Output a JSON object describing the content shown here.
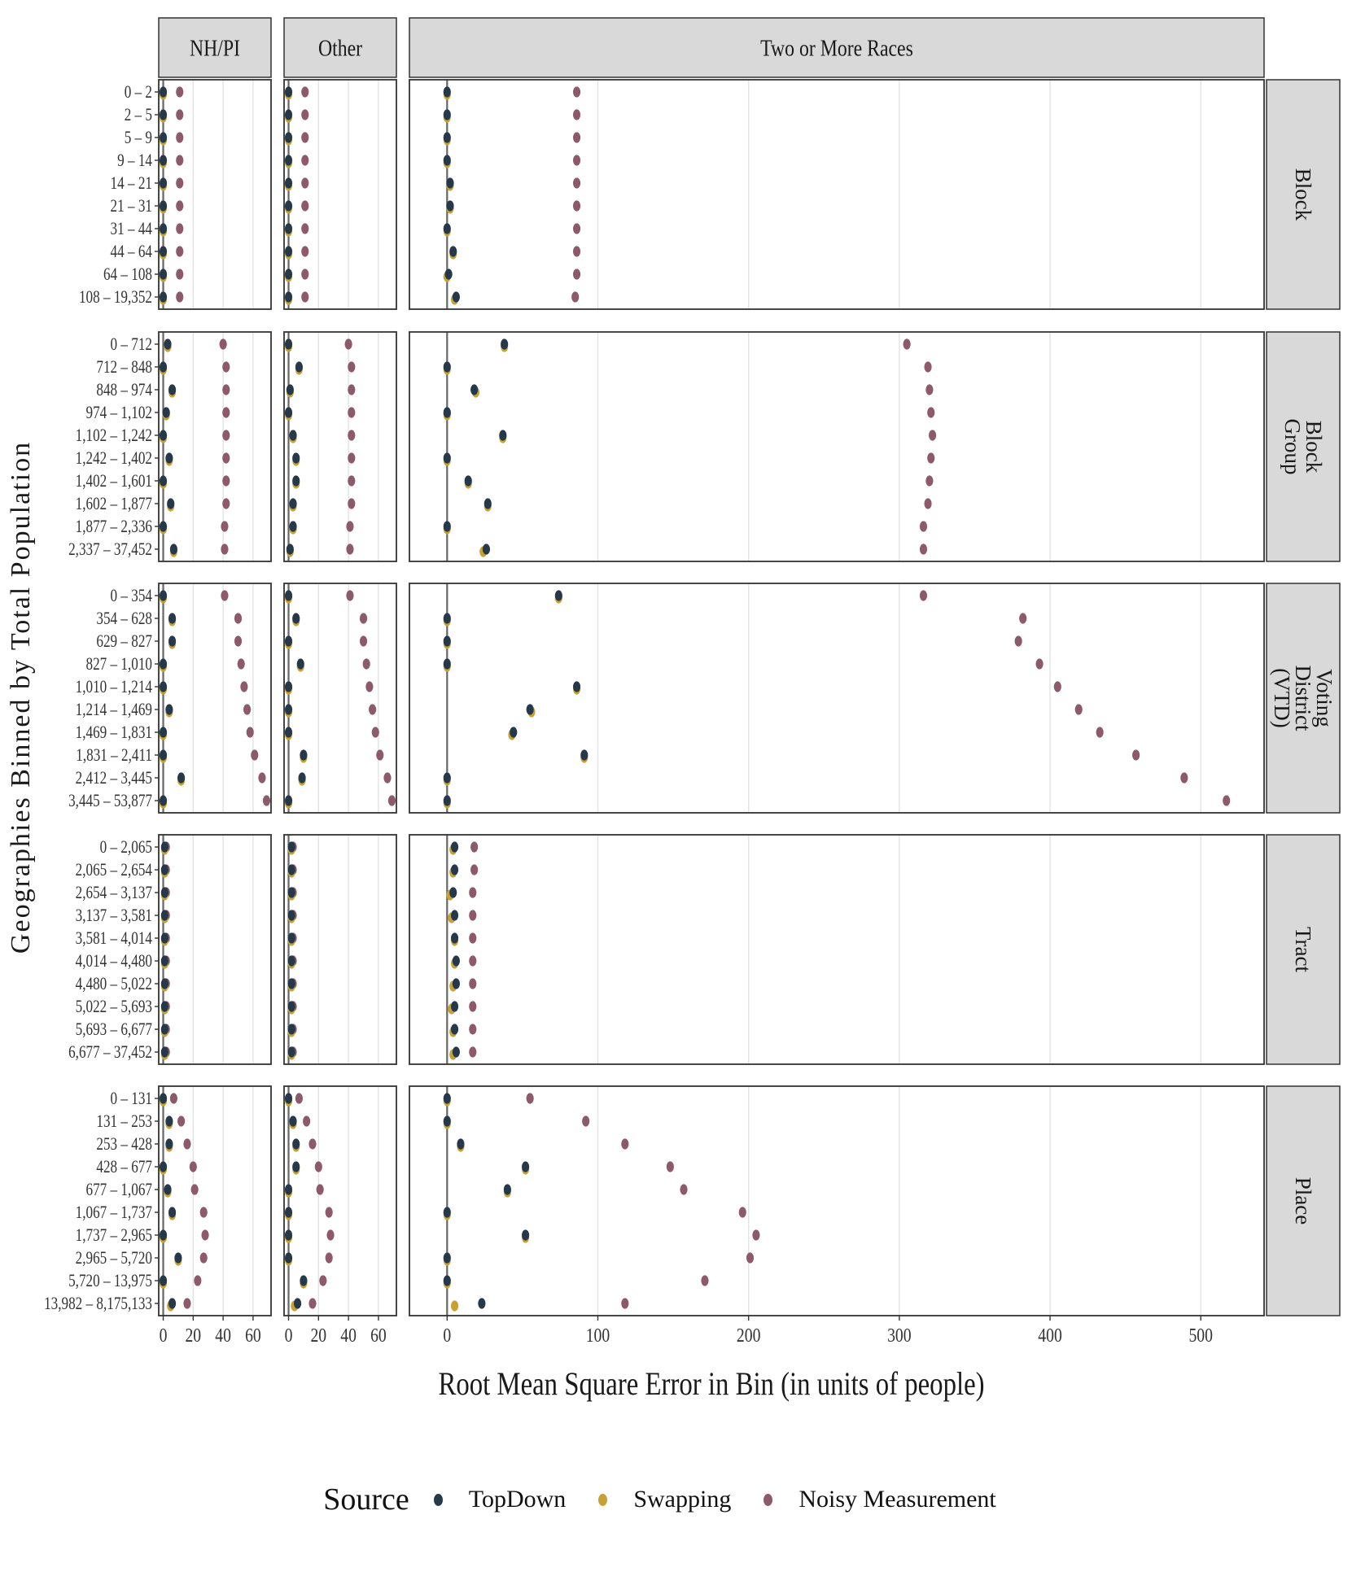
{
  "chart_data": {
    "type": "scatter",
    "xlabel": "Root Mean Square Error in Bin (in units of people)",
    "ylabel": "Geographies Binned by Total Population",
    "colors": {
      "TopDown": "#26394a",
      "Swapping": "#c7a134",
      "Noisy Measurement": "#8c5a6b"
    },
    "legend": {
      "title": "Source",
      "position": "bottom",
      "entries": [
        "TopDown",
        "Swapping",
        "Noisy Measurement"
      ]
    },
    "grid": true,
    "columns": [
      {
        "name": "NH/PI",
        "xlim": [
          -3,
          72
        ],
        "ticks": [
          0,
          20,
          40,
          60
        ]
      },
      {
        "name": "Other",
        "xlim": [
          -3,
          72
        ],
        "ticks": [
          0,
          20,
          40,
          60
        ]
      },
      {
        "name": "Two or More Races",
        "xlim": [
          -25,
          542
        ],
        "ticks": [
          0,
          100,
          200,
          300,
          400,
          500
        ]
      }
    ],
    "rows": [
      {
        "name": [
          "Block"
        ],
        "bins": [
          "0 – 2",
          "2 – 5",
          "5 – 9",
          "9 – 14",
          "14 – 21",
          "21 – 31",
          "31 – 44",
          "44 – 64",
          "64 – 108",
          "108 – 19,352"
        ],
        "data": [
          {
            "TopDown": [
              0,
              0,
              0,
              0,
              0,
              0,
              0,
              0,
              0,
              0
            ],
            "Swapping": [
              0,
              0,
              0,
              0,
              0,
              0,
              0,
              0,
              0,
              0
            ],
            "Noisy Measurement": [
              11,
              11,
              11,
              11,
              11,
              11,
              11,
              11,
              11,
              11
            ]
          },
          {
            "TopDown": [
              0,
              0,
              0,
              0,
              0,
              0,
              0,
              0,
              0,
              0
            ],
            "Swapping": [
              0,
              0,
              0,
              0,
              0,
              0,
              0,
              0,
              0,
              0
            ],
            "Noisy Measurement": [
              11,
              11,
              11,
              11,
              11,
              11,
              11,
              11,
              11,
              11
            ]
          },
          {
            "TopDown": [
              0,
              0,
              0,
              0,
              2,
              2,
              0,
              4,
              1,
              6
            ],
            "Swapping": [
              0,
              0,
              0,
              0,
              2,
              2,
              0,
              4,
              0,
              5
            ],
            "Noisy Measurement": [
              86,
              86,
              86,
              86,
              86,
              86,
              86,
              86,
              86,
              85
            ]
          }
        ]
      },
      {
        "name": [
          "Block",
          "Group"
        ],
        "bins": [
          "0 – 712",
          "712 – 848",
          "848 – 974",
          "974 – 1,102",
          "1,102 – 1,242",
          "1,242 – 1,402",
          "1,402 – 1,601",
          "1,602 – 1,877",
          "1,877 – 2,336",
          "2,337 – 37,452"
        ],
        "data": [
          {
            "TopDown": [
              3,
              0,
              6,
              2,
              0,
              4,
              0,
              5,
              0,
              7
            ],
            "Swapping": [
              3,
              0,
              6,
              2,
              0,
              4,
              0,
              5,
              0,
              7
            ],
            "Noisy Measurement": [
              40,
              42,
              42,
              42,
              42,
              42,
              42,
              42,
              41,
              41
            ]
          },
          {
            "TopDown": [
              0,
              7,
              1,
              0,
              3,
              5,
              5,
              3,
              3,
              1
            ],
            "Swapping": [
              0,
              7,
              1,
              0,
              3,
              5,
              5,
              3,
              3,
              1
            ],
            "Noisy Measurement": [
              40,
              42,
              42,
              42,
              42,
              42,
              42,
              42,
              41,
              41
            ]
          },
          {
            "TopDown": [
              38,
              0,
              18,
              0,
              37,
              0,
              14,
              27,
              0,
              26
            ],
            "Swapping": [
              38,
              0,
              19,
              0,
              37,
              0,
              14,
              27,
              0,
              24
            ],
            "Noisy Measurement": [
              305,
              319,
              320,
              321,
              322,
              321,
              320,
              319,
              316,
              316
            ]
          }
        ]
      },
      {
        "name": [
          "Voting",
          "District",
          "(VTD)"
        ],
        "bins": [
          "0 – 354",
          "354 – 628",
          "629 – 827",
          "827 – 1,010",
          "1,010 – 1,214",
          "1,214 – 1,469",
          "1,469 – 1,831",
          "1,831 – 2,411",
          "2,412 – 3,445",
          "3,445 – 53,877"
        ],
        "data": [
          {
            "TopDown": [
              0,
              6,
              6,
              0,
              0,
              4,
              0,
              0,
              12,
              0
            ],
            "Swapping": [
              0,
              6,
              6,
              0,
              0,
              4,
              0,
              0,
              12,
              0
            ],
            "Noisy Measurement": [
              41,
              50,
              50,
              52,
              54,
              56,
              58,
              61,
              66,
              69
            ]
          },
          {
            "TopDown": [
              0,
              5,
              0,
              8,
              0,
              0,
              0,
              10,
              9,
              0
            ],
            "Swapping": [
              0,
              5,
              0,
              8,
              0,
              0,
              0,
              10,
              9,
              0
            ],
            "Noisy Measurement": [
              41,
              50,
              50,
              52,
              54,
              56,
              58,
              61,
              66,
              69
            ]
          },
          {
            "TopDown": [
              74,
              0,
              0,
              0,
              86,
              55,
              44,
              91,
              0,
              0
            ],
            "Swapping": [
              74,
              0,
              0,
              0,
              86,
              56,
              43,
              91,
              0,
              0
            ],
            "Noisy Measurement": [
              316,
              382,
              379,
              393,
              405,
              419,
              433,
              457,
              489,
              517
            ]
          }
        ]
      },
      {
        "name": [
          "Tract"
        ],
        "bins": [
          "0 – 2,065",
          "2,065 – 2,654",
          "2,654 – 3,137",
          "3,137 – 3,581",
          "3,581 – 4,014",
          "4,014 – 4,480",
          "4,480 – 5,022",
          "5,022 – 5,693",
          "5,693 – 6,677",
          "6,677 – 37,452"
        ],
        "data": [
          {
            "TopDown": [
              1,
              1,
              1,
              1,
              1,
              1,
              1,
              1,
              1,
              1
            ],
            "Swapping": [
              1,
              1,
              1,
              1,
              1,
              1,
              1,
              1,
              1,
              1
            ],
            "Noisy Measurement": [
              2,
              2,
              2,
              2,
              2,
              2,
              2,
              2,
              2,
              2
            ]
          },
          {
            "TopDown": [
              2,
              2,
              2,
              2,
              2,
              2,
              2,
              2,
              2,
              2
            ],
            "Swapping": [
              2,
              2,
              2,
              2,
              2,
              2,
              2,
              2,
              2,
              2
            ],
            "Noisy Measurement": [
              3,
              3,
              3,
              3,
              3,
              3,
              3,
              3,
              3,
              3
            ]
          },
          {
            "TopDown": [
              5,
              5,
              4,
              5,
              5,
              6,
              6,
              5,
              5,
              6
            ],
            "Swapping": [
              4,
              4,
              2,
              3,
              5,
              5,
              4,
              3,
              4,
              4
            ],
            "Noisy Measurement": [
              18,
              18,
              17,
              17,
              17,
              17,
              17,
              17,
              17,
              17
            ]
          }
        ]
      },
      {
        "name": [
          "Place"
        ],
        "bins": [
          "0 – 131",
          "131 – 253",
          "253 – 428",
          "428 – 677",
          "677 – 1,067",
          "1,067 – 1,737",
          "1,737 – 2,965",
          "2,965 – 5,720",
          "5,720 – 13,975",
          "13,982 – 8,175,133"
        ],
        "data": [
          {
            "TopDown": [
              0,
              4,
              4,
              0,
              3,
              6,
              0,
              10,
              0,
              6
            ],
            "Swapping": [
              0,
              4,
              4,
              0,
              3,
              6,
              0,
              10,
              0,
              5
            ],
            "Noisy Measurement": [
              7,
              12,
              16,
              20,
              21,
              27,
              28,
              27,
              23,
              16
            ]
          },
          {
            "TopDown": [
              0,
              3,
              5,
              5,
              0,
              0,
              0,
              0,
              10,
              6
            ],
            "Swapping": [
              0,
              3,
              5,
              5,
              0,
              0,
              0,
              0,
              10,
              4
            ],
            "Noisy Measurement": [
              7,
              12,
              16,
              20,
              21,
              27,
              28,
              27,
              23,
              16
            ]
          },
          {
            "TopDown": [
              0,
              0,
              9,
              52,
              40,
              0,
              52,
              0,
              0,
              23
            ],
            "Swapping": [
              0,
              0,
              9,
              52,
              40,
              0,
              52,
              0,
              0,
              5
            ],
            "Noisy Measurement": [
              55,
              92,
              118,
              148,
              157,
              196,
              205,
              201,
              171,
              118
            ]
          }
        ]
      }
    ]
  }
}
